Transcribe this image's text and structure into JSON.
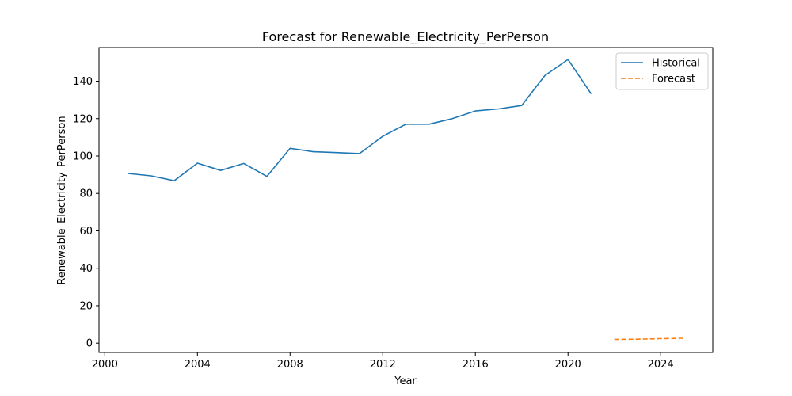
{
  "chart_data": {
    "type": "line",
    "title": "Forecast for Renewable_Electricity_PerPerson",
    "xlabel": "Year",
    "ylabel": "Renewable_Electricity_PerPerson",
    "xlim": [
      1999.75,
      2026.25
    ],
    "ylim": [
      -5,
      158
    ],
    "x_ticks": [
      2000,
      2004,
      2008,
      2012,
      2016,
      2020,
      2024
    ],
    "y_ticks": [
      0,
      20,
      40,
      60,
      80,
      100,
      120,
      140
    ],
    "grid": false,
    "legend_position": "top-right",
    "series": [
      {
        "name": "Historical",
        "color": "#1f77b4",
        "style": "solid",
        "x": [
          2001,
          2002,
          2003,
          2004,
          2005,
          2006,
          2007,
          2008,
          2009,
          2010,
          2011,
          2012,
          2013,
          2014,
          2015,
          2016,
          2017,
          2018,
          2019,
          2020,
          2021
        ],
        "y": [
          90.7,
          89.4,
          86.8,
          96.2,
          92.3,
          96.0,
          89.1,
          104.1,
          102.3,
          101.8,
          101.3,
          110.6,
          117.0,
          117.0,
          120.0,
          124.1,
          125.2,
          127.0,
          143.0,
          151.6,
          133.2
        ]
      },
      {
        "name": "Forecast",
        "color": "#ff7f0e",
        "style": "dashed",
        "x": [
          2022,
          2023,
          2024,
          2025
        ],
        "y": [
          2.0,
          2.1,
          2.4,
          2.6
        ]
      }
    ]
  }
}
